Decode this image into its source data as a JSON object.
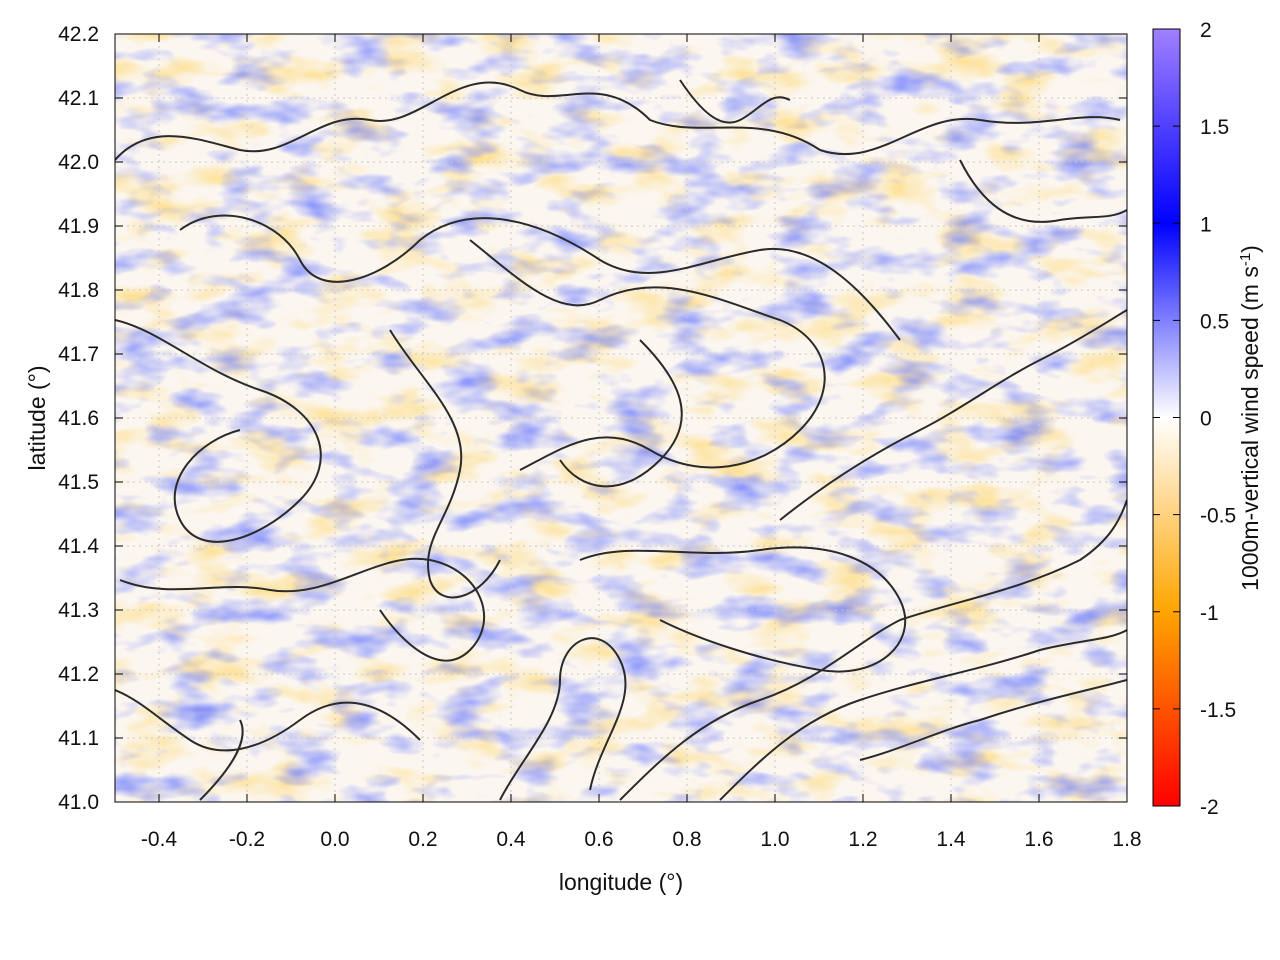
{
  "chart_data": {
    "type": "heatmap",
    "title": "",
    "xlabel": "longitude (°)",
    "ylabel": "latitude (°)",
    "xlim": [
      -0.5,
      1.8
    ],
    "ylim": [
      41.0,
      42.2
    ],
    "x_ticks": [
      "-0.4",
      "-0.2",
      "0.0",
      "0.2",
      "0.4",
      "0.6",
      "0.8",
      "1.0",
      "1.2",
      "1.4",
      "1.6",
      "1.8"
    ],
    "y_ticks": [
      "41.0",
      "41.1",
      "41.2",
      "41.3",
      "41.4",
      "41.5",
      "41.6",
      "41.7",
      "41.8",
      "41.9",
      "42.0",
      "42.1",
      "42.2"
    ],
    "grid": true,
    "colorbar": {
      "label": "1000m-vertical wind speed (m s",
      "label_superscript": "-1",
      "label_suffix": ")",
      "range": [
        -2,
        2
      ],
      "ticks": [
        "2",
        "1.5",
        "1",
        "0.5",
        "0",
        "-0.5",
        "-1",
        "-1.5",
        "-2"
      ],
      "colors": {
        "-2": "#ff0000",
        "-1": "#ffa500",
        "0": "#ffffff",
        "1": "#0000ff",
        "2": "#a080ff"
      }
    },
    "contours": "black contour lines of terrain elevation overlaid on field"
  }
}
